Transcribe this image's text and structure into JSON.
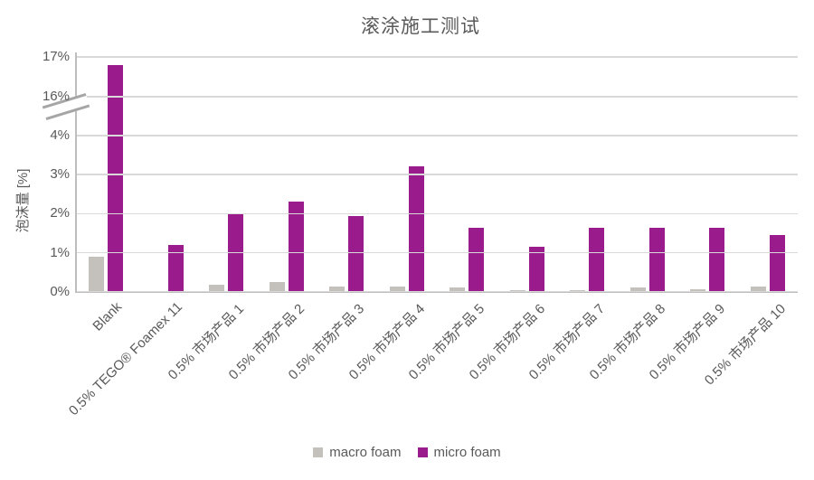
{
  "title": "滚涂施工测试",
  "y_axis_title": "泡沫量 [%]",
  "legend": {
    "macro_label": "macro foam",
    "micro_label": "micro foam"
  },
  "colors": {
    "macro_series": "#c4c1bc",
    "micro_series": "#9a1b8c",
    "gridline": "#d9d9d9",
    "axis_line": "#bfbdbd",
    "text": "#595959",
    "break_mark": "#a6a6a6"
  },
  "chart_data": {
    "type": "bar",
    "title": "滚涂施工测试",
    "xlabel": "",
    "ylabel": "泡沫量 [%]",
    "grid": true,
    "legend_position": "bottom",
    "axis_break": {
      "between": [
        "4%",
        "16%"
      ],
      "symbol": "double-slash"
    },
    "y_ticks": [
      "0%",
      "1%",
      "2%",
      "3%",
      "4%",
      "16%",
      "17%"
    ],
    "y_tick_values": [
      0,
      1,
      2,
      3,
      4,
      16,
      17
    ],
    "categories": [
      "Blank",
      "0.5% TEGO® Foamex 11",
      "0.5% 市场产品 1",
      "0.5% 市场产品 2",
      "0.5% 市场产品 3",
      "0.5% 市场产品 4",
      "0.5% 市场产品 5",
      "0.5% 市场产品 6",
      "0.5% 市场产品 7",
      "0.5% 市场产品 8",
      "0.5% 市场产品 9",
      "0.5% 市场产品 10"
    ],
    "series": [
      {
        "name": "macro foam",
        "color": "#c4c1bc",
        "values": [
          0.9,
          0,
          0.18,
          0.25,
          0.13,
          0.14,
          0.11,
          0.05,
          0.04,
          0.12,
          0.06,
          0.15
        ]
      },
      {
        "name": "micro foam",
        "color": "#9a1b8c",
        "values": [
          16.8,
          1.2,
          2.0,
          2.3,
          1.95,
          3.2,
          1.65,
          1.15,
          1.65,
          1.65,
          1.65,
          1.45
        ]
      }
    ]
  }
}
